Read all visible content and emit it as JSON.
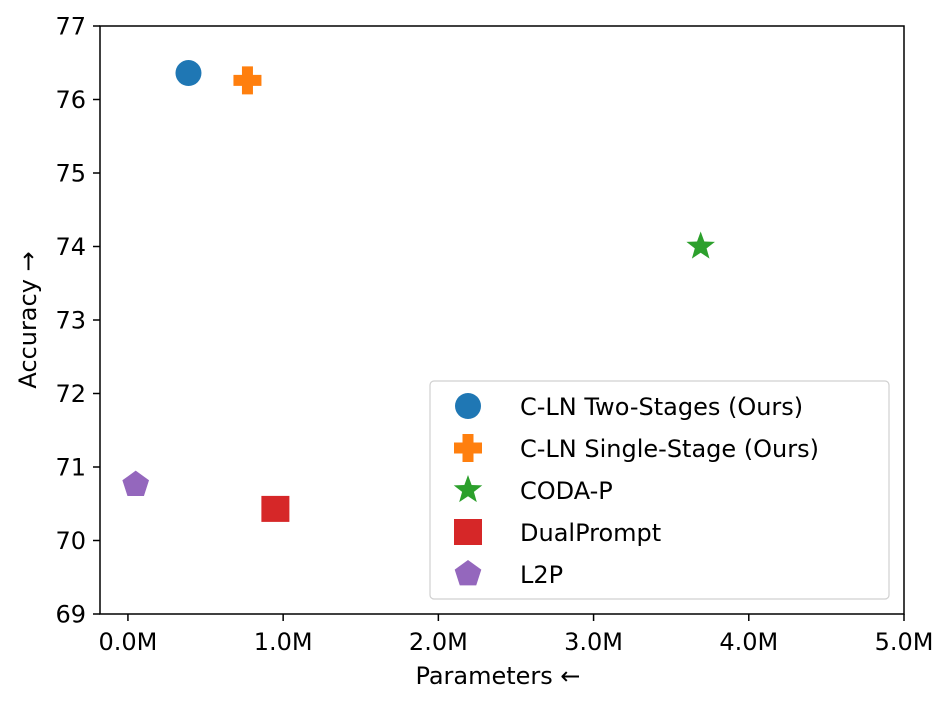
{
  "chart_data": {
    "type": "scatter",
    "title": "",
    "xlabel": "Parameters ←",
    "ylabel": "Accuracy →",
    "xlim": [
      -0.18,
      5.0
    ],
    "ylim": [
      69,
      77
    ],
    "x_ticks": [
      0,
      1,
      2,
      3,
      4,
      5
    ],
    "x_tick_labels": [
      "0.0M",
      "1.0M",
      "2.0M",
      "3.0M",
      "4.0M",
      "5.0M"
    ],
    "y_ticks": [
      69,
      70,
      71,
      72,
      73,
      74,
      75,
      76,
      77
    ],
    "y_tick_labels": [
      "69",
      "70",
      "71",
      "72",
      "73",
      "74",
      "75",
      "76",
      "77"
    ],
    "grid": false,
    "legend_position": "lower-right",
    "series": [
      {
        "name": "C-LN Two-Stages (Ours)",
        "marker": "circle",
        "color": "#1f77b4",
        "x": [
          0.39
        ],
        "y": [
          76.36
        ]
      },
      {
        "name": "C-LN Single-Stage (Ours)",
        "marker": "plus",
        "color": "#ff7f0e",
        "x": [
          0.77
        ],
        "y": [
          76.26
        ]
      },
      {
        "name": "CODA-P",
        "marker": "star",
        "color": "#2ca02c",
        "x": [
          3.69
        ],
        "y": [
          74.0
        ]
      },
      {
        "name": "DualPrompt",
        "marker": "square",
        "color": "#d62728",
        "x": [
          0.95
        ],
        "y": [
          70.43
        ]
      },
      {
        "name": "L2P",
        "marker": "pentagon",
        "color": "#9467bd",
        "x": [
          0.05
        ],
        "y": [
          70.76
        ]
      }
    ]
  }
}
